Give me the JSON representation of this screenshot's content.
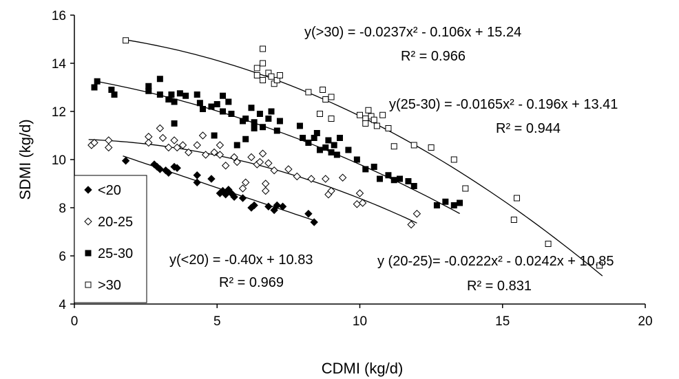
{
  "chart_data": {
    "type": "scatter",
    "xlabel": "CDMI (kg/d)",
    "ylabel": "SDMI (kg/d)",
    "xlim": [
      0,
      20
    ],
    "ylim": [
      4,
      16
    ],
    "xticks": [
      "0",
      "5",
      "10",
      "15",
      "20"
    ],
    "yticks": [
      "4",
      "6",
      "8",
      "10",
      "12",
      "14",
      "16"
    ],
    "grid": false,
    "legend_position": "bottom-left",
    "series": [
      {
        "name": "<20",
        "marker": "filled-diamond",
        "color": "#000000",
        "trendline": {
          "type": "linear",
          "coeffs": [
            10.83,
            -0.4
          ],
          "x_range": [
            1.7,
            8.4
          ],
          "equation": "y(<20) = -0.40x + 10.83",
          "r2": "R² = 0.969"
        },
        "points": [
          [
            1.8,
            9.95
          ],
          [
            2.8,
            9.8
          ],
          [
            2.9,
            9.7
          ],
          [
            3.0,
            9.6
          ],
          [
            3.2,
            9.55
          ],
          [
            3.3,
            9.45
          ],
          [
            3.5,
            9.7
          ],
          [
            3.6,
            9.65
          ],
          [
            4.3,
            9.35
          ],
          [
            4.3,
            9.05
          ],
          [
            4.8,
            9.2
          ],
          [
            5.1,
            8.6
          ],
          [
            5.2,
            8.7
          ],
          [
            5.3,
            8.55
          ],
          [
            5.4,
            8.75
          ],
          [
            5.5,
            8.6
          ],
          [
            5.6,
            8.45
          ],
          [
            5.9,
            8.4
          ],
          [
            6.2,
            8.0
          ],
          [
            6.3,
            8.1
          ],
          [
            6.8,
            8.05
          ],
          [
            7.0,
            7.9
          ],
          [
            7.1,
            8.1
          ],
          [
            7.3,
            8.05
          ],
          [
            8.2,
            7.75
          ],
          [
            8.4,
            7.4
          ]
        ]
      },
      {
        "name": "20-25",
        "marker": "open-diamond",
        "color": "#000000",
        "trendline": {
          "type": "quadratic",
          "coeffs": [
            10.85,
            -0.0242,
            -0.0222
          ],
          "x_range": [
            0.5,
            12.0
          ],
          "equation": "y (20-25)= -0.0222x² - 0.0242x + 10.85",
          "r2": "R² = 0.831"
        },
        "points": [
          [
            0.6,
            10.6
          ],
          [
            0.7,
            10.7
          ],
          [
            1.2,
            10.8
          ],
          [
            1.2,
            10.5
          ],
          [
            2.6,
            10.95
          ],
          [
            2.6,
            10.7
          ],
          [
            3.0,
            11.3
          ],
          [
            3.1,
            10.9
          ],
          [
            3.3,
            10.5
          ],
          [
            3.5,
            10.8
          ],
          [
            3.6,
            10.5
          ],
          [
            3.8,
            10.6
          ],
          [
            4.0,
            10.3
          ],
          [
            4.3,
            10.6
          ],
          [
            4.5,
            11.0
          ],
          [
            4.6,
            10.2
          ],
          [
            4.9,
            10.3
          ],
          [
            5.1,
            10.6
          ],
          [
            5.1,
            10.2
          ],
          [
            5.3,
            9.75
          ],
          [
            5.6,
            10.1
          ],
          [
            5.7,
            9.9
          ],
          [
            5.9,
            8.8
          ],
          [
            6.0,
            9.05
          ],
          [
            6.2,
            10.1
          ],
          [
            6.4,
            9.8
          ],
          [
            6.5,
            9.9
          ],
          [
            6.6,
            10.25
          ],
          [
            6.8,
            9.85
          ],
          [
            7.0,
            9.55
          ],
          [
            6.7,
            9.0
          ],
          [
            6.7,
            8.7
          ],
          [
            7.5,
            9.6
          ],
          [
            7.8,
            9.3
          ],
          [
            8.3,
            9.2
          ],
          [
            8.8,
            9.2
          ],
          [
            8.9,
            8.55
          ],
          [
            9.0,
            8.7
          ],
          [
            9.4,
            9.25
          ],
          [
            9.9,
            8.15
          ],
          [
            10.0,
            8.6
          ],
          [
            10.1,
            8.2
          ],
          [
            11.8,
            7.3
          ],
          [
            12.0,
            7.75
          ]
        ]
      },
      {
        "name": "25-30",
        "marker": "filled-square",
        "color": "#000000",
        "trendline": {
          "type": "quadratic",
          "coeffs": [
            13.41,
            -0.196,
            -0.0165
          ],
          "x_range": [
            0.7,
            13.5
          ],
          "equation": "y(25-30) = -0.0165x² - 0.196x + 13.41",
          "r2": "R² = 0.944"
        },
        "points": [
          [
            0.7,
            13.0
          ],
          [
            0.8,
            13.25
          ],
          [
            1.3,
            12.9
          ],
          [
            1.4,
            12.7
          ],
          [
            2.6,
            13.05
          ],
          [
            2.6,
            12.85
          ],
          [
            3.0,
            13.35
          ],
          [
            3.0,
            12.7
          ],
          [
            3.3,
            12.5
          ],
          [
            3.4,
            12.7
          ],
          [
            3.5,
            12.4
          ],
          [
            3.7,
            12.75
          ],
          [
            3.9,
            12.65
          ],
          [
            4.3,
            12.7
          ],
          [
            4.4,
            12.35
          ],
          [
            4.5,
            12.1
          ],
          [
            4.8,
            12.2
          ],
          [
            5.0,
            12.3
          ],
          [
            5.2,
            12.65
          ],
          [
            5.2,
            12.0
          ],
          [
            5.4,
            12.4
          ],
          [
            5.5,
            11.9
          ],
          [
            5.9,
            11.6
          ],
          [
            6.0,
            11.7
          ],
          [
            6.2,
            12.15
          ],
          [
            6.3,
            11.55
          ],
          [
            6.5,
            11.9
          ],
          [
            6.6,
            11.35
          ],
          [
            6.8,
            11.7
          ],
          [
            6.9,
            12.0
          ],
          [
            7.1,
            11.2
          ],
          [
            7.2,
            11.6
          ],
          [
            3.5,
            11.5
          ],
          [
            4.9,
            11.0
          ],
          [
            5.7,
            10.6
          ],
          [
            6.0,
            10.85
          ],
          [
            6.3,
            11.3
          ],
          [
            7.9,
            11.4
          ],
          [
            8.0,
            10.9
          ],
          [
            8.2,
            10.7
          ],
          [
            8.4,
            10.9
          ],
          [
            8.6,
            10.4
          ],
          [
            8.8,
            10.5
          ],
          [
            8.9,
            10.8
          ],
          [
            9.0,
            10.3
          ],
          [
            9.1,
            10.6
          ],
          [
            9.2,
            10.2
          ],
          [
            9.3,
            10.9
          ],
          [
            8.5,
            11.1
          ],
          [
            9.6,
            10.4
          ],
          [
            9.9,
            10.0
          ],
          [
            10.2,
            9.6
          ],
          [
            10.5,
            9.7
          ],
          [
            10.7,
            9.2
          ],
          [
            11.0,
            9.35
          ],
          [
            11.2,
            9.15
          ],
          [
            11.4,
            9.2
          ],
          [
            11.7,
            9.1
          ],
          [
            11.9,
            8.9
          ],
          [
            12.7,
            8.1
          ],
          [
            13.0,
            8.25
          ],
          [
            13.3,
            8.1
          ],
          [
            13.5,
            8.2
          ]
        ]
      },
      {
        "name": ">30",
        "marker": "open-square",
        "color": "#000000",
        "trendline": {
          "type": "quadratic",
          "coeffs": [
            15.24,
            -0.106,
            -0.0237
          ],
          "x_range": [
            1.7,
            18.5
          ],
          "equation": "y(>30) = -0.0237x² - 0.106x + 15.24",
          "r2": "R² = 0.966"
        },
        "points": [
          [
            1.8,
            14.95
          ],
          [
            6.6,
            14.6
          ],
          [
            6.6,
            14.0
          ],
          [
            6.4,
            13.8
          ],
          [
            6.4,
            13.5
          ],
          [
            6.6,
            13.3
          ],
          [
            6.8,
            13.6
          ],
          [
            6.9,
            13.45
          ],
          [
            7.0,
            13.15
          ],
          [
            7.1,
            13.3
          ],
          [
            7.2,
            13.5
          ],
          [
            8.2,
            12.8
          ],
          [
            8.7,
            12.9
          ],
          [
            8.8,
            12.5
          ],
          [
            9.0,
            12.6
          ],
          [
            8.6,
            11.9
          ],
          [
            9.0,
            11.7
          ],
          [
            10.0,
            11.85
          ],
          [
            10.2,
            11.7
          ],
          [
            10.3,
            12.05
          ],
          [
            10.4,
            11.8
          ],
          [
            10.5,
            11.65
          ],
          [
            10.6,
            11.4
          ],
          [
            10.8,
            11.85
          ],
          [
            11.0,
            11.3
          ],
          [
            10.2,
            11.5
          ],
          [
            11.2,
            10.55
          ],
          [
            11.9,
            10.6
          ],
          [
            12.5,
            10.5
          ],
          [
            13.3,
            10.0
          ],
          [
            13.7,
            8.8
          ],
          [
            15.4,
            7.5
          ],
          [
            15.5,
            8.4
          ],
          [
            16.6,
            6.5
          ],
          [
            18.4,
            5.6
          ]
        ]
      }
    ]
  }
}
